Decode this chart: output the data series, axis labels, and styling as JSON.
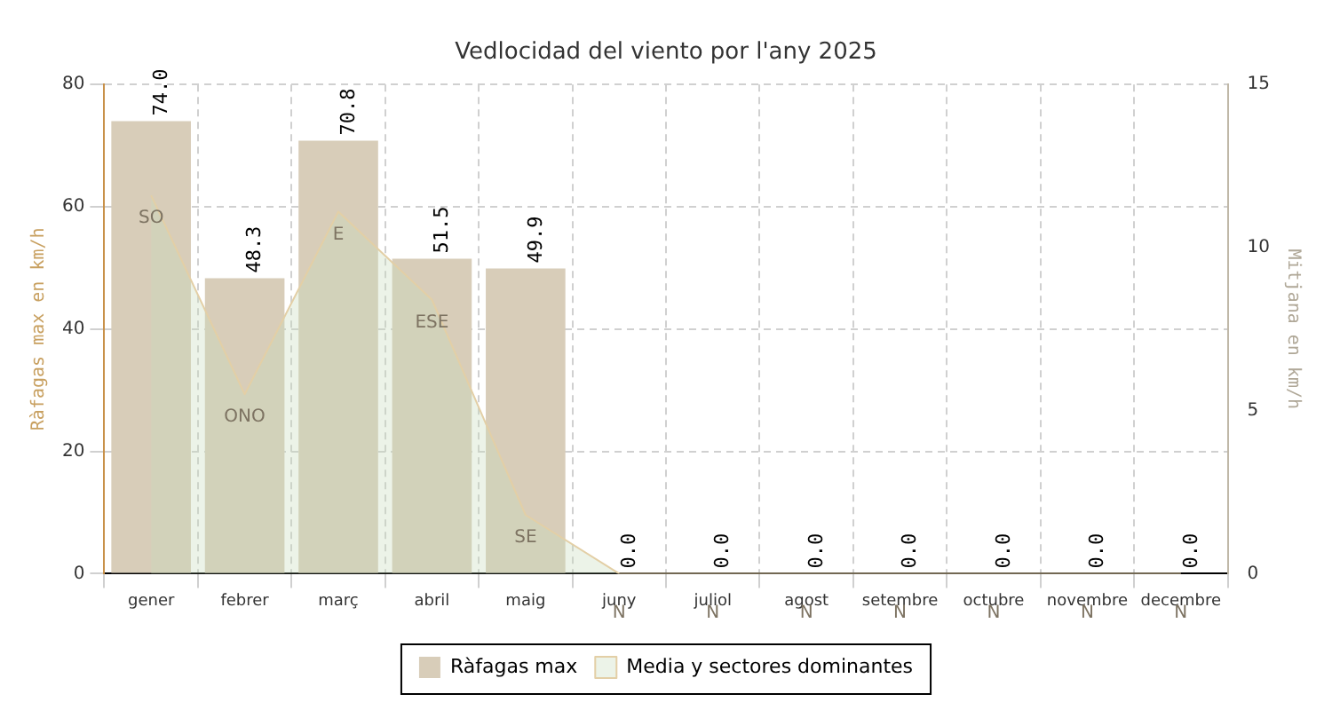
{
  "chart_data": {
    "type": "bar",
    "title": "Vedlocidad del viento por l'any 2025",
    "ylabel": "Ràfagas max en km/h",
    "y2label": "Mitjana en km/h",
    "categories": [
      "gener",
      "febrer",
      "març",
      "abril",
      "maig",
      "juny",
      "juliol",
      "agost",
      "setembre",
      "octubre",
      "novembre",
      "decembre"
    ],
    "series": [
      {
        "name": "Ràfagas max",
        "type": "bar",
        "color": "#d8cdb9",
        "values": [
          74.0,
          48.3,
          70.8,
          51.5,
          49.9,
          0.0,
          0.0,
          0.0,
          0.0,
          0.0,
          0.0,
          0.0
        ],
        "value_labels": [
          "74.0",
          "48.3",
          "70.8",
          "51.5",
          "49.9",
          "0.0",
          "0.0",
          "0.0",
          "0.0",
          "0.0",
          "0.0",
          "0.0"
        ]
      },
      {
        "name": "Media y sectores dominantes",
        "type": "area",
        "axis": "y2",
        "color": "#e3cfa6",
        "values": [
          11.6,
          5.5,
          11.1,
          8.4,
          1.8,
          0,
          0,
          0,
          0,
          0,
          0,
          0
        ],
        "value_labels": [
          "SO",
          "ONO",
          "E",
          "ESE",
          "SE",
          "N",
          "N",
          "N",
          "N",
          "N",
          "N",
          "N"
        ]
      }
    ],
    "ylim": [
      0,
      80
    ],
    "yticks": [
      0,
      20,
      40,
      60,
      80
    ],
    "y2lim": [
      0,
      15
    ],
    "y2ticks": [
      0,
      5,
      10,
      15
    ],
    "grid": true,
    "legend": "bottom"
  }
}
